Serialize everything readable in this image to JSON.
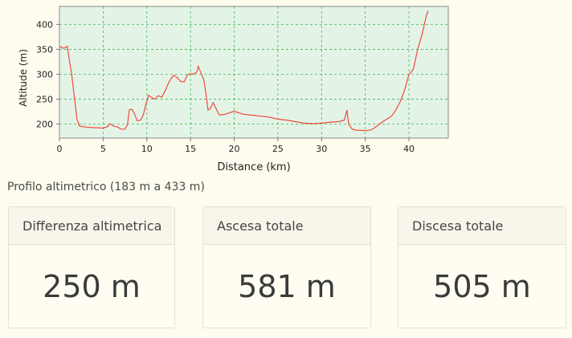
{
  "chart_data": {
    "type": "line",
    "xlabel": "Distance (km)",
    "ylabel": "Altitude (m)",
    "xlim": [
      0,
      44.5
    ],
    "ylim": [
      172,
      436
    ],
    "xticks": [
      0,
      5,
      10,
      15,
      20,
      25,
      30,
      35,
      40
    ],
    "yticks": [
      200,
      250,
      300,
      350,
      400
    ],
    "grid": true,
    "series_color": "#ef4b3b",
    "plot_bg": "#e3f4e7",
    "points": [
      [
        0,
        356
      ],
      [
        0.5,
        352
      ],
      [
        0.9,
        356
      ],
      [
        1.1,
        332
      ],
      [
        1.4,
        300
      ],
      [
        1.7,
        255
      ],
      [
        2.0,
        210
      ],
      [
        2.3,
        196
      ],
      [
        3,
        194
      ],
      [
        4,
        193
      ],
      [
        5,
        192
      ],
      [
        5.5,
        195
      ],
      [
        5.8,
        201
      ],
      [
        6.2,
        196
      ],
      [
        6.7,
        194
      ],
      [
        7,
        190
      ],
      [
        7.5,
        190
      ],
      [
        7.8,
        200
      ],
      [
        8.0,
        229
      ],
      [
        8.3,
        230
      ],
      [
        8.6,
        220
      ],
      [
        8.9,
        207
      ],
      [
        9.3,
        208
      ],
      [
        9.6,
        219
      ],
      [
        9.9,
        240
      ],
      [
        10.2,
        258
      ],
      [
        10.5,
        254
      ],
      [
        10.9,
        250
      ],
      [
        11.3,
        257
      ],
      [
        11.7,
        254
      ],
      [
        12.1,
        267
      ],
      [
        12.5,
        283
      ],
      [
        12.8,
        292
      ],
      [
        13.1,
        298
      ],
      [
        13.5,
        293
      ],
      [
        13.9,
        285
      ],
      [
        14.3,
        285
      ],
      [
        14.6,
        297
      ],
      [
        14.9,
        301
      ],
      [
        15.3,
        300
      ],
      [
        15.7,
        304
      ],
      [
        15.9,
        316
      ],
      [
        16.2,
        302
      ],
      [
        16.5,
        290
      ],
      [
        16.8,
        258
      ],
      [
        17.0,
        228
      ],
      [
        17.3,
        232
      ],
      [
        17.6,
        243
      ],
      [
        17.9,
        232
      ],
      [
        18.3,
        218
      ],
      [
        19.0,
        220
      ],
      [
        20.0,
        226
      ],
      [
        21,
        220
      ],
      [
        22,
        218
      ],
      [
        23,
        216
      ],
      [
        24,
        214
      ],
      [
        25,
        210
      ],
      [
        26,
        208
      ],
      [
        27,
        205
      ],
      [
        28,
        202
      ],
      [
        29,
        201
      ],
      [
        30,
        202
      ],
      [
        31,
        204
      ],
      [
        32,
        205
      ],
      [
        32.6,
        208
      ],
      [
        32.9,
        228
      ],
      [
        33.1,
        200
      ],
      [
        33.5,
        190
      ],
      [
        34,
        188
      ],
      [
        35,
        187
      ],
      [
        35.6,
        188
      ],
      [
        36,
        192
      ],
      [
        37,
        205
      ],
      [
        38,
        216
      ],
      [
        38.5,
        228
      ],
      [
        39,
        245
      ],
      [
        39.5,
        268
      ],
      [
        40,
        300
      ],
      [
        40.5,
        310
      ],
      [
        41,
        350
      ],
      [
        41.5,
        380
      ],
      [
        42,
        418
      ],
      [
        42.2,
        427
      ]
    ]
  },
  "summary": {
    "caption": "Profilo altimetrico (183 m a 433 m)",
    "cards": [
      {
        "title": "Differenza altimetrica",
        "value": "250 m"
      },
      {
        "title": "Ascesa totale",
        "value": "581 m"
      },
      {
        "title": "Discesa totale",
        "value": "505 m"
      }
    ]
  }
}
